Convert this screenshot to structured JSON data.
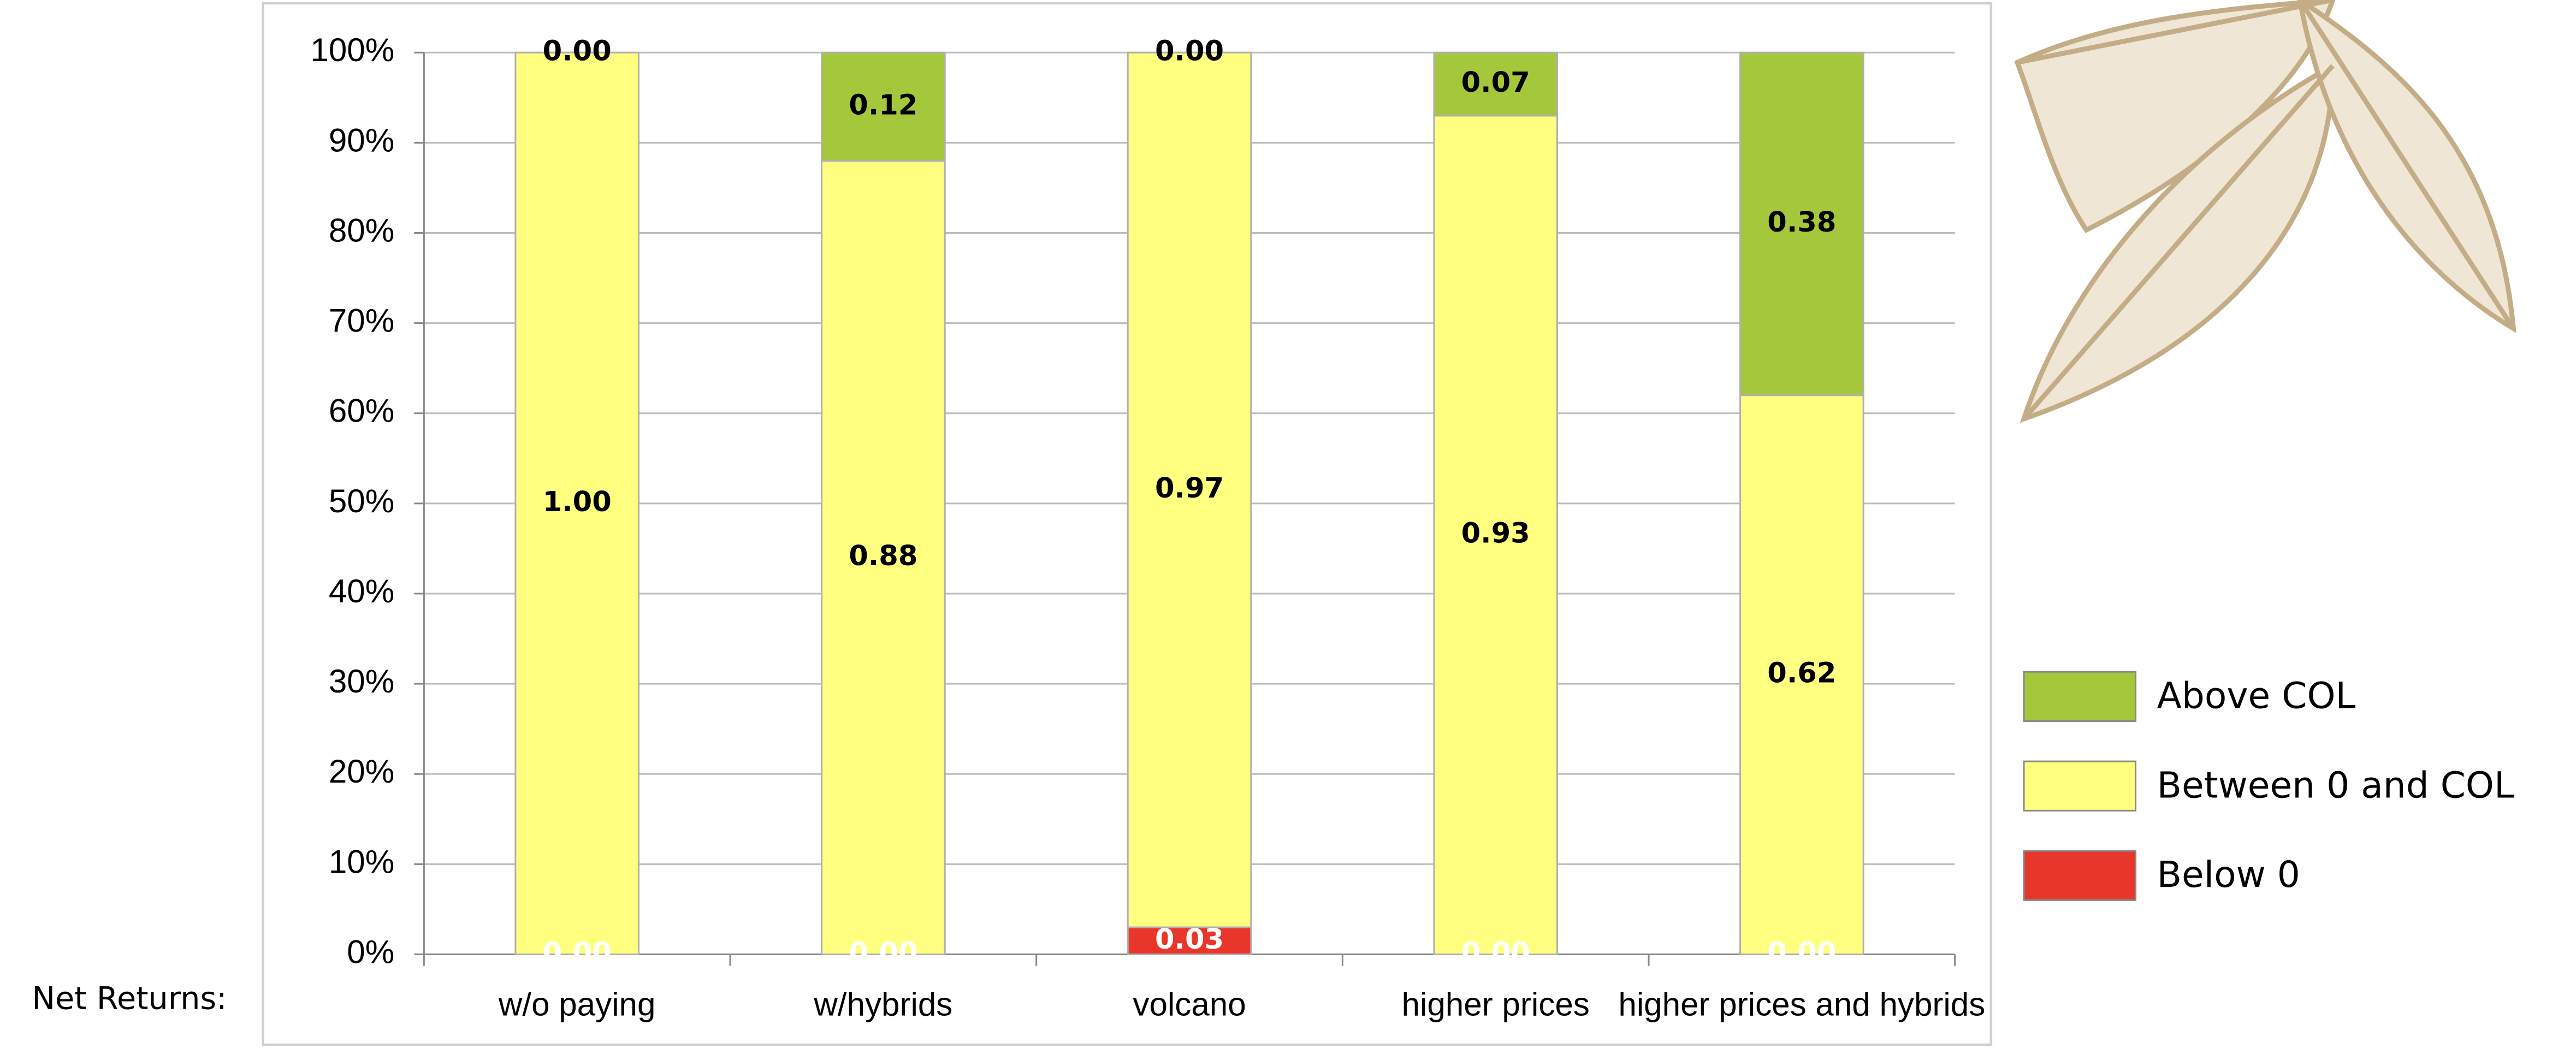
{
  "row_label": "Net Returns:",
  "chart_data": {
    "type": "stacked-bar",
    "categories": [
      "w/o paying",
      "w/hybrids",
      "volcano",
      "higher prices",
      "higher prices and hybrids"
    ],
    "series": [
      {
        "name": "Below 0",
        "color": "#e8372a",
        "label_color": "#ffffff",
        "values": [
          0,
          0,
          0.03,
          0,
          0
        ],
        "value_labels": [
          "0.00",
          "0.00",
          "0.03",
          "0.00",
          "0.00"
        ]
      },
      {
        "name": "Between 0 and COL",
        "color": "#ffff80",
        "label_color": "#000000",
        "values": [
          1,
          0.88,
          0.97,
          0.93,
          0.62
        ],
        "value_labels": [
          "1.00",
          "0.88",
          "0.97",
          "0.93",
          "0.62"
        ]
      },
      {
        "name": "Above COL",
        "color": "#a5c73b",
        "label_color": "#000000",
        "values": [
          0,
          0.12,
          0,
          0.07,
          0.38
        ],
        "value_labels": [
          "0.00",
          "0.12",
          "0.00",
          "0.07",
          "0.38"
        ]
      }
    ],
    "ylim": [
      0,
      1
    ],
    "yticks": [
      {
        "value": 0,
        "label": "0%"
      },
      {
        "value": 0.1,
        "label": "10%"
      },
      {
        "value": 0.2,
        "label": "20%"
      },
      {
        "value": 0.3,
        "label": "30%"
      },
      {
        "value": 0.4,
        "label": "40%"
      },
      {
        "value": 0.5,
        "label": "50%"
      },
      {
        "value": 0.6,
        "label": "60%"
      },
      {
        "value": 0.7,
        "label": "70%"
      },
      {
        "value": 0.8,
        "label": "80%"
      },
      {
        "value": 0.9,
        "label": "90%"
      },
      {
        "value": 1,
        "label": "100%"
      }
    ],
    "grid": true,
    "legend": "right"
  }
}
